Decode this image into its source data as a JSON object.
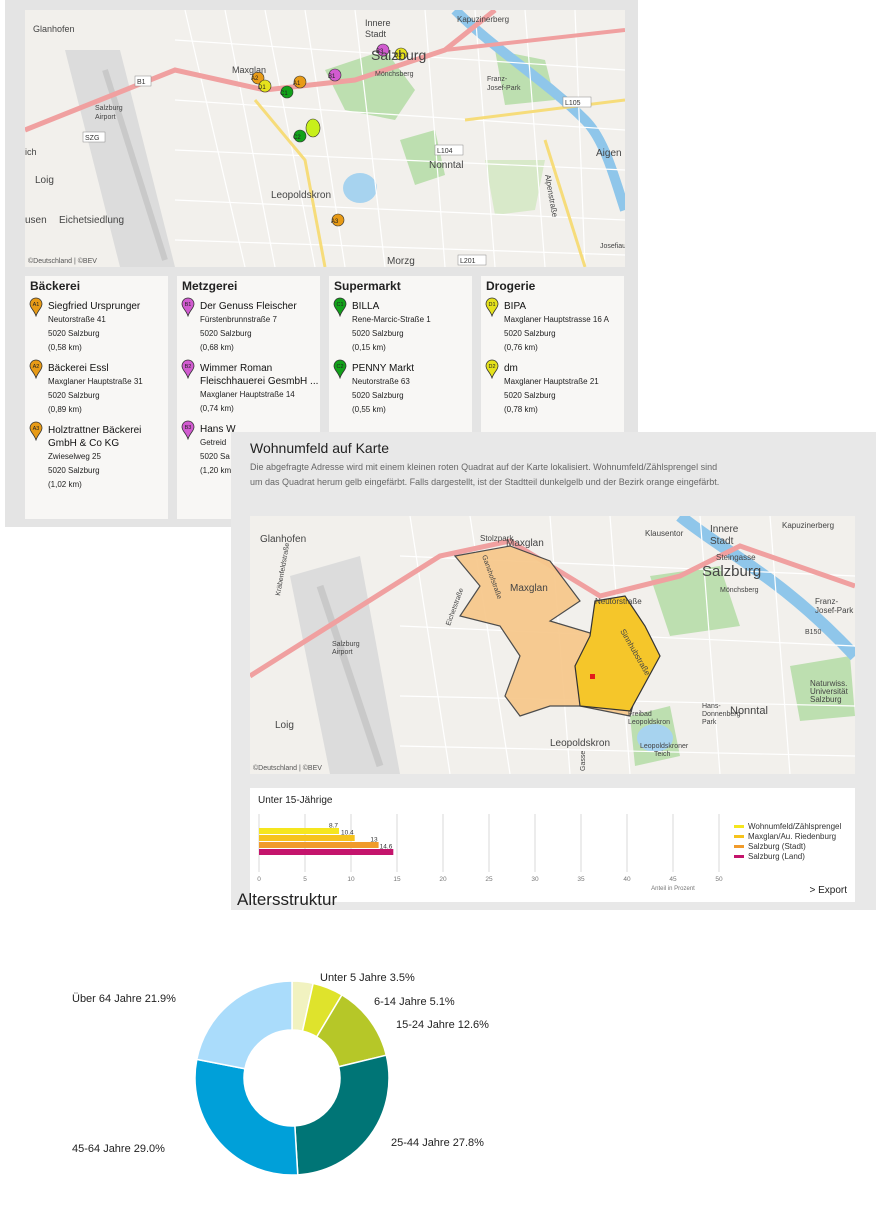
{
  "map1": {
    "caption": "©Deutschland | ©BEV",
    "places": [
      "Glanhofen",
      "Innere",
      "Stadt",
      "Salzburg",
      "Kapuzinerberg",
      "Maxglan",
      "Mönchsberg",
      "Franz-",
      "Josef-Park",
      "Salzburg",
      "Airport",
      "Loig",
      "Nonntal",
      "Aigen",
      "Leopoldskron",
      "Morzg",
      "Eichetsiedlung",
      "usen",
      "ich",
      "Alpenstraße",
      "Josefiau"
    ],
    "roads": [
      "B1",
      "L105",
      "L104",
      "L201",
      "SZG"
    ],
    "markers": [
      "A1",
      "A2",
      "A3",
      "B1",
      "B3",
      "D1",
      "D3",
      "C1",
      "C2"
    ]
  },
  "poi": [
    {
      "category": "Bäckerei",
      "color": "#e89b16",
      "items": [
        {
          "code": "A1",
          "name": "Siegfried Ursprunger",
          "lines": [
            "Neutorstraße 41",
            "5020 Salzburg",
            "(0,58 km)"
          ]
        },
        {
          "code": "A2",
          "name": "Bäckerei Essl",
          "lines": [
            "Maxglaner Hauptstraße 31",
            "5020 Salzburg",
            "(0,89 km)"
          ]
        },
        {
          "code": "A3",
          "name": "Holztrattner Bäckerei GmbH & Co KG",
          "lines": [
            "Zwieselweg 25",
            "5020 Salzburg",
            "(1,02 km)"
          ]
        }
      ]
    },
    {
      "category": "Metzgerei",
      "color": "#d15bd0",
      "items": [
        {
          "code": "B1",
          "name": "Der Genuss Fleischer",
          "lines": [
            "Fürstenbrunnstraße 7",
            "5020 Salzburg",
            "(0,68 km)"
          ]
        },
        {
          "code": "B2",
          "name": "Wimmer Roman Fleischhauerei GesmbH ...",
          "lines": [
            "Maxglaner Hauptstraße 14",
            "(0,74 km)"
          ]
        },
        {
          "code": "B3",
          "name": "Hans W",
          "lines": [
            "Getreid",
            "5020 Sa",
            "(1,20 km"
          ]
        }
      ]
    },
    {
      "category": "Supermarkt",
      "color": "#12a11a",
      "items": [
        {
          "code": "C1",
          "name": "BILLA",
          "lines": [
            "Rene-Marcic-Straße 1",
            "5020 Salzburg",
            "(0,15 km)"
          ]
        },
        {
          "code": "C2",
          "name": "PENNY Markt",
          "lines": [
            "Neutorstraße 63",
            "5020 Salzburg",
            "(0,55 km)"
          ]
        }
      ]
    },
    {
      "category": "Drogerie",
      "color": "#e5e21c",
      "items": [
        {
          "code": "D1",
          "name": "BIPA",
          "lines": [
            "Maxglaner Hauptstrasse 16 A",
            "5020 Salzburg",
            "(0,76 km)"
          ]
        },
        {
          "code": "D2",
          "name": "dm",
          "lines": [
            "Maxglaner Hauptstraße 21",
            "5020 Salzburg",
            "(0,78 km)"
          ]
        }
      ]
    }
  ],
  "panel2": {
    "title": "Wohnumfeld auf Karte",
    "description": "Die abgefragte Adresse wird mit einem kleinen roten Quadrat auf der Karte lokalisiert. Wohnumfeld/Zählsprengel sind um das Quadrat herum gelb eingefärbt. Falls dargestellt, ist der Stadtteil dunkelgelb und der Bezirk orange eingefärbt.",
    "map_caption": "©Deutschland | ©BEV",
    "map_places": [
      "Glanhofen",
      "Maxglan",
      "Stolzpark",
      "Klausentor",
      "Innere",
      "Stadt",
      "Kapuzinerberg",
      "Steingasse",
      "Salzburg",
      "Mönchsberg",
      "Franz-",
      "Josef-Park",
      "Neutorstraße",
      "Sinnhubstraße",
      "Freibad",
      "Leopoldskron",
      "Hans-",
      "Donnenberg-",
      "Park",
      "Nonntal",
      "Naturwiss.",
      "Universität",
      "Salzburg",
      "Salzburg",
      "Airport",
      "Loig",
      "Leopoldskron",
      "Leopoldskroner",
      "Teich",
      "Gasse",
      "Eichetstraße",
      "Ganshofstraße",
      "Kräbenfeldstraße",
      "B150",
      "Maxglan"
    ],
    "export_label": "> Export"
  },
  "chart_data": [
    {
      "type": "bar",
      "orientation": "horizontal",
      "title": "Unter 15-Jährige",
      "xlabel": "Anteil in Prozent",
      "xlim": [
        0,
        50
      ],
      "xticks": [
        0,
        5,
        10,
        15,
        20,
        25,
        30,
        35,
        40,
        45,
        50
      ],
      "legend_position": "right",
      "series": [
        {
          "name": "Wohnumfeld/Zählsprengel",
          "value": 8.7,
          "label": "8.7",
          "color": "#f5e61e"
        },
        {
          "name": "Maxglan/Au. Riedenburg",
          "value": 10.4,
          "label": "10.4",
          "color": "#f6c31c"
        },
        {
          "name": "Salzburg (Stadt)",
          "value": 13,
          "label": "13",
          "color": "#f09b2b"
        },
        {
          "name": "Salzburg (Land)",
          "value": 14.6,
          "label": "14.6",
          "color": "#c4146c"
        }
      ]
    },
    {
      "type": "pie",
      "style": "donut",
      "title": "Altersstruktur",
      "slices": [
        {
          "name": "Unter 5 Jahre",
          "value": 3.5,
          "label": "Unter 5 Jahre 3.5%",
          "color": "#f1f2c0"
        },
        {
          "name": "6-14 Jahre",
          "value": 5.1,
          "label": "6-14 Jahre 5.1%",
          "color": "#dfe32c"
        },
        {
          "name": "15-24 Jahre",
          "value": 12.6,
          "label": "15-24 Jahre 12.6%",
          "color": "#b6c728"
        },
        {
          "name": "25-44 Jahre",
          "value": 27.8,
          "label": "25-44 Jahre 27.8%",
          "color": "#007576"
        },
        {
          "name": "45-64 Jahre",
          "value": 29.0,
          "label": "45-64 Jahre 29.0%",
          "color": "#00a0d9"
        },
        {
          "name": "Über 64 Jahre",
          "value": 21.9,
          "label": "Über 64 Jahre 21.9%",
          "color": "#aadcfb"
        }
      ]
    }
  ]
}
